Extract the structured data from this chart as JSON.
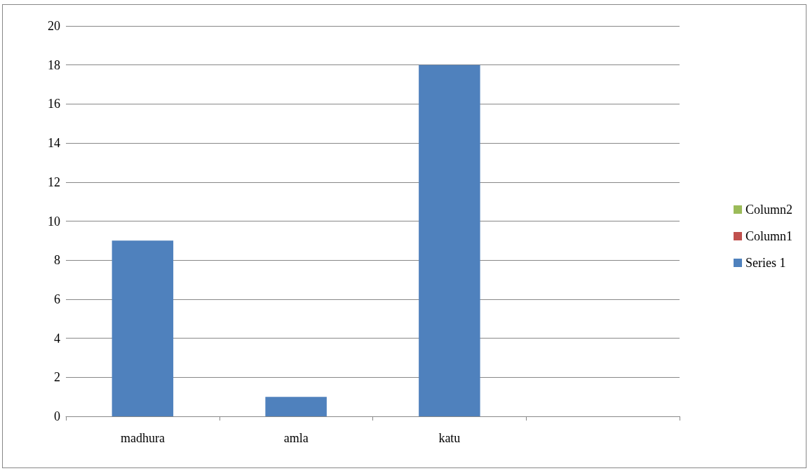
{
  "chart_data": {
    "type": "bar",
    "categories": [
      "madhura",
      "amla",
      "katu",
      null
    ],
    "series": [
      {
        "name": "Series 1",
        "color": "#4f81bd",
        "values": [
          9,
          1,
          18,
          null
        ]
      },
      {
        "name": "Column1",
        "color": "#c0504d",
        "values": [
          null,
          null,
          null,
          null
        ]
      },
      {
        "name": "Column2",
        "color": "#9bbb59",
        "values": [
          null,
          null,
          null,
          null
        ]
      }
    ],
    "stacked": true,
    "ylim": [
      0,
      20
    ],
    "yticks": [
      0,
      2,
      4,
      6,
      8,
      10,
      12,
      14,
      16,
      18,
      20
    ],
    "grid": "y",
    "legend": "right"
  }
}
